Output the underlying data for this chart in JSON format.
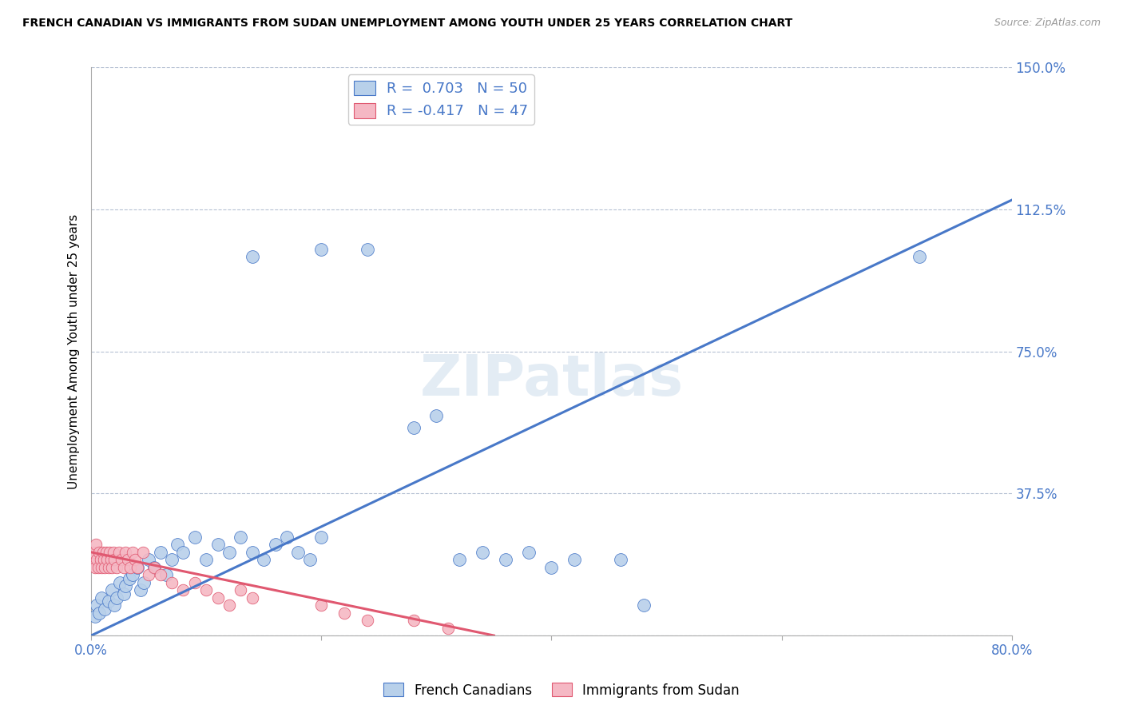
{
  "title": "FRENCH CANADIAN VS IMMIGRANTS FROM SUDAN UNEMPLOYMENT AMONG YOUTH UNDER 25 YEARS CORRELATION CHART",
  "source": "Source: ZipAtlas.com",
  "ylabel": "Unemployment Among Youth under 25 years",
  "xlim": [
    0.0,
    0.8
  ],
  "ylim": [
    0.0,
    1.5
  ],
  "xticks": [
    0.0,
    0.2,
    0.4,
    0.6,
    0.8
  ],
  "xtick_labels": [
    "0.0%",
    "",
    "",
    "",
    "80.0%"
  ],
  "yticks": [
    0.0,
    0.375,
    0.75,
    1.125,
    1.5
  ],
  "ytick_labels": [
    "",
    "37.5%",
    "75.0%",
    "112.5%",
    "150.0%"
  ],
  "blue_R": 0.703,
  "blue_N": 50,
  "pink_R": -0.417,
  "pink_N": 47,
  "blue_color": "#b8d0ea",
  "pink_color": "#f5b8c4",
  "blue_line_color": "#4878c8",
  "pink_line_color": "#e05870",
  "legend_label_blue": "French Canadians",
  "legend_label_pink": "Immigrants from Sudan",
  "blue_scatter": [
    [
      0.003,
      0.05
    ],
    [
      0.005,
      0.08
    ],
    [
      0.007,
      0.06
    ],
    [
      0.009,
      0.1
    ],
    [
      0.012,
      0.07
    ],
    [
      0.015,
      0.09
    ],
    [
      0.018,
      0.12
    ],
    [
      0.02,
      0.08
    ],
    [
      0.022,
      0.1
    ],
    [
      0.025,
      0.14
    ],
    [
      0.028,
      0.11
    ],
    [
      0.03,
      0.13
    ],
    [
      0.033,
      0.15
    ],
    [
      0.036,
      0.16
    ],
    [
      0.04,
      0.18
    ],
    [
      0.043,
      0.12
    ],
    [
      0.046,
      0.14
    ],
    [
      0.05,
      0.2
    ],
    [
      0.055,
      0.18
    ],
    [
      0.06,
      0.22
    ],
    [
      0.065,
      0.16
    ],
    [
      0.07,
      0.2
    ],
    [
      0.075,
      0.24
    ],
    [
      0.08,
      0.22
    ],
    [
      0.09,
      0.26
    ],
    [
      0.1,
      0.2
    ],
    [
      0.11,
      0.24
    ],
    [
      0.12,
      0.22
    ],
    [
      0.13,
      0.26
    ],
    [
      0.14,
      0.22
    ],
    [
      0.15,
      0.2
    ],
    [
      0.16,
      0.24
    ],
    [
      0.17,
      0.26
    ],
    [
      0.18,
      0.22
    ],
    [
      0.19,
      0.2
    ],
    [
      0.2,
      0.26
    ],
    [
      0.14,
      1.0
    ],
    [
      0.2,
      1.02
    ],
    [
      0.24,
      1.02
    ],
    [
      0.28,
      0.55
    ],
    [
      0.3,
      0.58
    ],
    [
      0.32,
      0.2
    ],
    [
      0.34,
      0.22
    ],
    [
      0.36,
      0.2
    ],
    [
      0.38,
      0.22
    ],
    [
      0.4,
      0.18
    ],
    [
      0.42,
      0.2
    ],
    [
      0.46,
      0.2
    ],
    [
      0.48,
      0.08
    ],
    [
      0.72,
      1.0
    ]
  ],
  "pink_scatter": [
    [
      0.001,
      0.2
    ],
    [
      0.002,
      0.22
    ],
    [
      0.003,
      0.18
    ],
    [
      0.004,
      0.24
    ],
    [
      0.005,
      0.2
    ],
    [
      0.006,
      0.18
    ],
    [
      0.007,
      0.22
    ],
    [
      0.008,
      0.2
    ],
    [
      0.009,
      0.18
    ],
    [
      0.01,
      0.22
    ],
    [
      0.011,
      0.2
    ],
    [
      0.012,
      0.18
    ],
    [
      0.013,
      0.22
    ],
    [
      0.014,
      0.2
    ],
    [
      0.015,
      0.18
    ],
    [
      0.016,
      0.22
    ],
    [
      0.017,
      0.2
    ],
    [
      0.018,
      0.18
    ],
    [
      0.019,
      0.22
    ],
    [
      0.02,
      0.2
    ],
    [
      0.022,
      0.18
    ],
    [
      0.024,
      0.22
    ],
    [
      0.026,
      0.2
    ],
    [
      0.028,
      0.18
    ],
    [
      0.03,
      0.22
    ],
    [
      0.032,
      0.2
    ],
    [
      0.034,
      0.18
    ],
    [
      0.036,
      0.22
    ],
    [
      0.038,
      0.2
    ],
    [
      0.04,
      0.18
    ],
    [
      0.045,
      0.22
    ],
    [
      0.05,
      0.16
    ],
    [
      0.055,
      0.18
    ],
    [
      0.06,
      0.16
    ],
    [
      0.07,
      0.14
    ],
    [
      0.08,
      0.12
    ],
    [
      0.09,
      0.14
    ],
    [
      0.1,
      0.12
    ],
    [
      0.11,
      0.1
    ],
    [
      0.12,
      0.08
    ],
    [
      0.13,
      0.12
    ],
    [
      0.14,
      0.1
    ],
    [
      0.2,
      0.08
    ],
    [
      0.22,
      0.06
    ],
    [
      0.24,
      0.04
    ],
    [
      0.28,
      0.04
    ],
    [
      0.31,
      0.02
    ]
  ],
  "blue_line": [
    [
      0.0,
      0.0
    ],
    [
      0.8,
      1.15
    ]
  ],
  "pink_line": [
    [
      0.0,
      0.22
    ],
    [
      0.35,
      0.0
    ]
  ]
}
